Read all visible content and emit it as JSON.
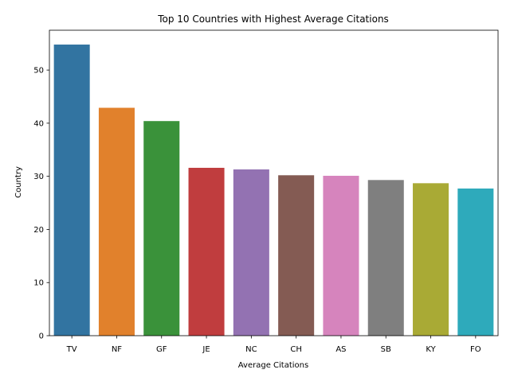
{
  "chart_data": {
    "type": "bar",
    "title": "Top 10 Countries with Highest Average Citations",
    "xlabel": "Average Citations",
    "ylabel": "Country",
    "categories": [
      "TV",
      "NF",
      "GF",
      "JE",
      "NC",
      "CH",
      "AS",
      "SB",
      "KY",
      "FO"
    ],
    "values": [
      54.8,
      42.9,
      40.4,
      31.6,
      31.3,
      30.2,
      30.1,
      29.3,
      28.7,
      27.7
    ],
    "colors": [
      "#3274a1",
      "#e1812c",
      "#3a923a",
      "#c03d3e",
      "#9372b2",
      "#845b53",
      "#d684bd",
      "#7f7f7f",
      "#a9aa35",
      "#2eaabb"
    ],
    "ylim": [
      0,
      57.5
    ],
    "yticks": [
      0,
      10,
      20,
      30,
      40,
      50
    ],
    "grid": false,
    "legend": "none"
  }
}
